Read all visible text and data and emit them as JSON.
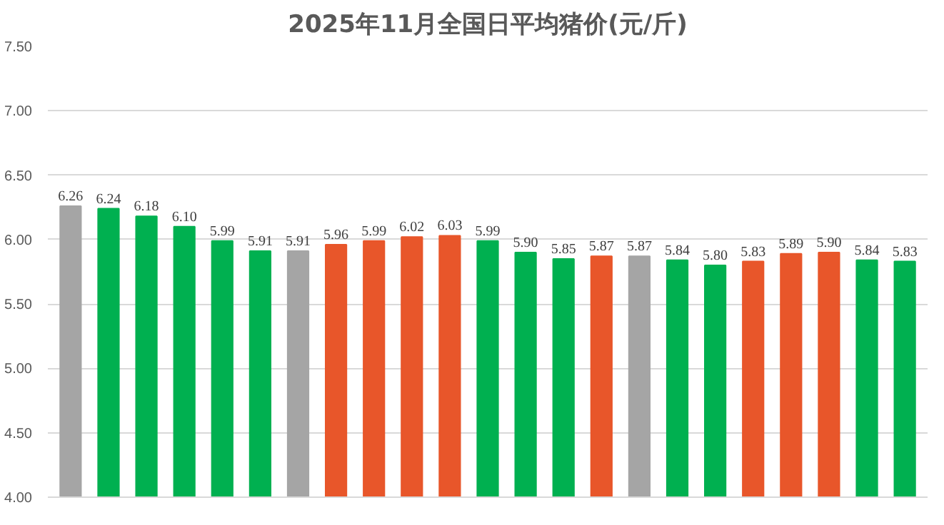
{
  "chart_data": {
    "type": "bar",
    "title": "2025年11月全国日平均猪价(元/斤)",
    "categories": [
      null,
      null,
      null,
      null,
      null,
      null,
      null,
      null,
      null,
      null,
      null,
      null,
      null,
      null,
      null,
      null,
      null,
      null,
      null,
      null,
      null,
      null,
      null
    ],
    "values": [
      6.26,
      6.24,
      6.18,
      6.1,
      5.99,
      5.91,
      5.91,
      5.96,
      5.99,
      6.02,
      6.03,
      5.99,
      5.9,
      5.85,
      5.87,
      5.87,
      5.84,
      5.8,
      5.83,
      5.89,
      5.9,
      5.84,
      5.83
    ],
    "value_labels": [
      "6.26",
      "6.24",
      "6.18",
      "6.10",
      "5.99",
      "5.91",
      "5.91",
      "5.96",
      "5.99",
      "6.02",
      "6.03",
      "5.99",
      "5.90",
      "5.85",
      "5.87",
      "5.87",
      "5.84",
      "5.80",
      "5.83",
      "5.89",
      "5.90",
      "5.84",
      "5.83"
    ],
    "colors": [
      "#a5a5a5",
      "#00b050",
      "#00b050",
      "#00b050",
      "#00b050",
      "#00b050",
      "#a5a5a5",
      "#e8562a",
      "#e8562a",
      "#e8562a",
      "#e8562a",
      "#00b050",
      "#00b050",
      "#00b050",
      "#e8562a",
      "#a5a5a5",
      "#00b050",
      "#00b050",
      "#e8562a",
      "#e8562a",
      "#e8562a",
      "#00b050",
      "#00b050"
    ],
    "ylim": [
      4.0,
      7.5
    ],
    "yticks": [
      {
        "value": 4.0,
        "label": "4.00"
      },
      {
        "value": 4.5,
        "label": "4.50"
      },
      {
        "value": 5.0,
        "label": "5.00"
      },
      {
        "value": 5.5,
        "label": "5.50"
      },
      {
        "value": 6.0,
        "label": "6.00"
      },
      {
        "value": 6.5,
        "label": "6.50"
      },
      {
        "value": 7.0,
        "label": "7.00"
      },
      {
        "value": 7.5,
        "label": "7.50"
      }
    ],
    "grid": "y"
  }
}
